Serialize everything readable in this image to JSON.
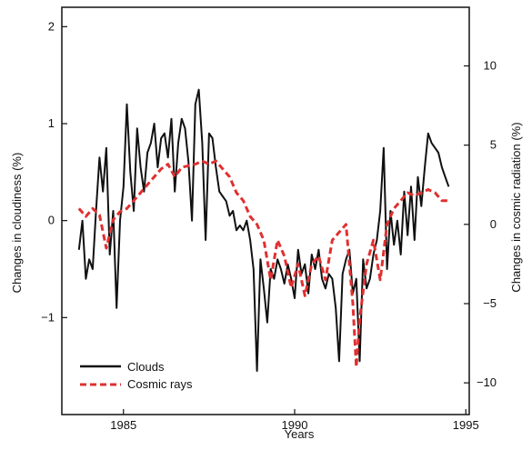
{
  "chart_data": {
    "type": "line",
    "xlabel": "Years",
    "ylabel_left": "Changes in cloudiness (%)",
    "ylabel_right": "Changes in cosmic radiation (%)",
    "xlim": [
      1983.2,
      1995.1
    ],
    "ylim_left": [
      -2.0,
      2.2
    ],
    "ylim_right": [
      -12.0,
      13.7
    ],
    "x_ticks": [
      1985,
      1990,
      1995
    ],
    "y_ticks_left": [
      -1,
      0,
      1,
      2
    ],
    "y_ticks_right": [
      -10,
      -5,
      0,
      5,
      10
    ],
    "x_tick_labels": [
      "1985",
      "1990",
      "1995"
    ],
    "y_tick_labels_left": [
      "−1",
      "0",
      "1",
      "2"
    ],
    "y_tick_labels_right": [
      "−10",
      "−5",
      "0",
      "5",
      "10"
    ],
    "grid": false,
    "legend_position": "bottom-left",
    "series": [
      {
        "name": "Clouds",
        "axis": "left",
        "color": "#111111",
        "style": "solid",
        "x": [
          1983.7,
          1983.8,
          1983.9,
          1984.0,
          1984.1,
          1984.2,
          1984.3,
          1984.4,
          1984.5,
          1984.6,
          1984.7,
          1984.8,
          1984.9,
          1985.0,
          1985.1,
          1985.2,
          1985.3,
          1985.4,
          1985.5,
          1985.6,
          1985.7,
          1985.8,
          1985.9,
          1986.0,
          1986.1,
          1986.2,
          1986.3,
          1986.4,
          1986.5,
          1986.6,
          1986.7,
          1986.8,
          1986.9,
          1987.0,
          1987.1,
          1987.2,
          1987.3,
          1987.4,
          1987.5,
          1987.6,
          1987.7,
          1987.8,
          1987.9,
          1988.0,
          1988.1,
          1988.2,
          1988.3,
          1988.4,
          1988.5,
          1988.6,
          1988.7,
          1988.8,
          1988.9,
          1989.0,
          1989.1,
          1989.2,
          1989.3,
          1989.4,
          1989.5,
          1989.6,
          1989.7,
          1989.8,
          1989.9,
          1990.0,
          1990.1,
          1990.2,
          1990.3,
          1990.4,
          1990.5,
          1990.6,
          1990.7,
          1990.8,
          1990.9,
          1991.0,
          1991.1,
          1991.2,
          1991.3,
          1991.4,
          1991.5,
          1991.6,
          1991.7,
          1991.8,
          1991.9,
          1992.0,
          1992.1,
          1992.2,
          1992.3,
          1992.4,
          1992.5,
          1992.6,
          1992.7,
          1992.8,
          1992.9,
          1993.0,
          1993.1,
          1993.2,
          1993.3,
          1993.4,
          1993.5,
          1993.6,
          1993.7,
          1993.8,
          1993.9,
          1994.0,
          1994.1,
          1994.2,
          1994.3,
          1994.4,
          1994.5
        ],
        "values": [
          -0.3,
          0.0,
          -0.6,
          -0.4,
          -0.5,
          0.1,
          0.65,
          0.3,
          0.75,
          -0.35,
          0.1,
          -0.9,
          0.0,
          0.35,
          1.2,
          0.5,
          0.1,
          0.95,
          0.55,
          0.3,
          0.7,
          0.8,
          1.0,
          0.55,
          0.85,
          0.9,
          0.65,
          1.05,
          0.3,
          0.8,
          1.05,
          0.95,
          0.6,
          0.0,
          1.2,
          1.35,
          0.8,
          -0.2,
          0.9,
          0.85,
          0.55,
          0.3,
          0.25,
          0.2,
          0.05,
          0.1,
          -0.1,
          -0.05,
          -0.1,
          0.0,
          -0.2,
          -0.5,
          -1.55,
          -0.4,
          -0.7,
          -1.05,
          -0.5,
          -0.6,
          -0.4,
          -0.5,
          -0.65,
          -0.45,
          -0.6,
          -0.8,
          -0.3,
          -0.55,
          -0.45,
          -0.75,
          -0.35,
          -0.5,
          -0.3,
          -0.6,
          -0.7,
          -0.55,
          -0.6,
          -0.9,
          -1.45,
          -0.55,
          -0.4,
          -0.3,
          -0.75,
          -0.6,
          -1.45,
          -0.4,
          -0.7,
          -0.6,
          -0.35,
          -0.2,
          0.1,
          0.75,
          -0.5,
          0.1,
          -0.25,
          0.0,
          -0.35,
          0.3,
          -0.15,
          0.35,
          -0.2,
          0.45,
          0.15,
          0.55,
          0.9,
          0.8,
          0.75,
          0.7,
          0.55,
          0.45,
          0.35
        ]
      },
      {
        "name": "Cosmic rays",
        "axis": "right",
        "color": "#e03030",
        "style": "dashed",
        "x": [
          1983.7,
          1983.9,
          1984.1,
          1984.3,
          1984.5,
          1984.7,
          1984.9,
          1985.1,
          1985.3,
          1985.5,
          1985.7,
          1985.9,
          1986.1,
          1986.3,
          1986.5,
          1986.7,
          1986.9,
          1987.1,
          1987.3,
          1987.5,
          1987.7,
          1987.9,
          1988.1,
          1988.3,
          1988.5,
          1988.7,
          1988.9,
          1989.1,
          1989.3,
          1989.5,
          1989.7,
          1989.9,
          1990.1,
          1990.3,
          1990.5,
          1990.7,
          1990.9,
          1991.1,
          1991.3,
          1991.5,
          1991.7,
          1991.8,
          1991.9,
          1992.1,
          1992.3,
          1992.5,
          1992.7,
          1992.9,
          1993.1,
          1993.3,
          1993.5,
          1993.7,
          1993.9,
          1994.1,
          1994.3,
          1994.5
        ],
        "values": [
          1.0,
          0.5,
          1.0,
          0.6,
          -1.5,
          0.3,
          0.8,
          1.0,
          1.5,
          2.0,
          2.5,
          3.0,
          3.5,
          3.8,
          3.0,
          3.6,
          3.7,
          3.8,
          4.0,
          3.8,
          4.0,
          3.5,
          3.0,
          2.0,
          1.5,
          0.5,
          0.0,
          -1.0,
          -3.5,
          -1.0,
          -2.0,
          -4.0,
          -2.5,
          -4.5,
          -2.5,
          -2.0,
          -3.5,
          -1.0,
          -0.5,
          0.0,
          -5.0,
          -9.0,
          -6.0,
          -2.5,
          -1.0,
          -3.5,
          0.0,
          1.0,
          1.5,
          2.0,
          1.8,
          2.0,
          2.2,
          2.0,
          1.5,
          1.5
        ]
      }
    ]
  }
}
